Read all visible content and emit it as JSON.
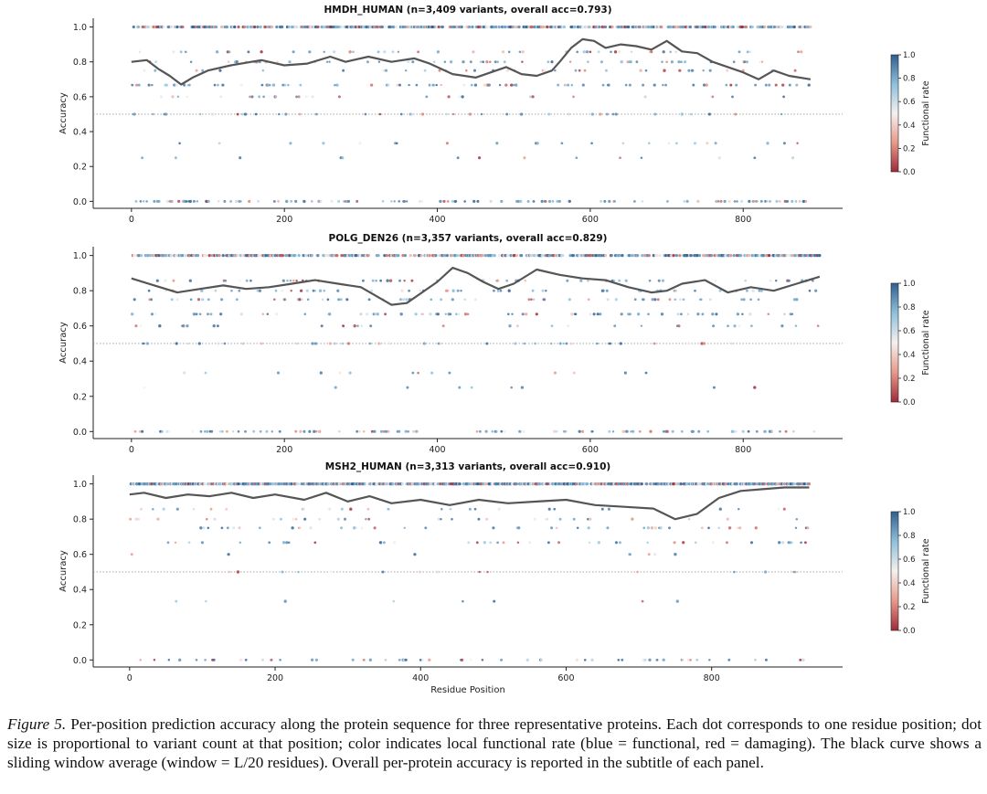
{
  "caption": {
    "label": "Figure 5.",
    "text": "Per-position prediction accuracy along the protein sequence for three representative proteins. Each dot corresponds to one residue position; dot size is proportional to variant count at that position; color indicates local functional rate (blue = functional, red = damaging). The black curve shows a sliding window average (window = L/20 residues). Overall per-protein accuracy is reported in the subtitle of each panel."
  },
  "colors": {
    "functional": "#2f5f8f",
    "neutral": "#f4f1ee",
    "damaging": "#9e2a3a",
    "curve": "#555555",
    "reference": "#999999"
  },
  "chart_data": [
    {
      "type": "scatter",
      "title": "HMDH_HUMAN  (n=3,409 variants, overall acc=0.793)",
      "xlabel": "",
      "ylabel": "Accuracy",
      "xlim": [
        -50,
        930
      ],
      "ylim": [
        -0.04,
        1.05
      ],
      "xticks": [
        0,
        200,
        400,
        600,
        800
      ],
      "yticks": [
        0.0,
        0.2,
        0.4,
        0.6,
        0.8,
        1.0
      ],
      "reference_line": 0.5,
      "n_residues": 888,
      "dot_color_by": "local functional rate",
      "colorbar": {
        "label": "Functional rate",
        "ticks": [
          0.0,
          0.2,
          0.4,
          0.6,
          0.8,
          1.0
        ]
      },
      "window_average": {
        "x": [
          0,
          20,
          35,
          50,
          65,
          80,
          100,
          130,
          170,
          200,
          230,
          260,
          280,
          310,
          340,
          370,
          390,
          420,
          450,
          470,
          490,
          510,
          530,
          550,
          560,
          575,
          590,
          605,
          620,
          640,
          660,
          680,
          700,
          720,
          740,
          760,
          780,
          800,
          820,
          840,
          860,
          888
        ],
        "y": [
          0.8,
          0.81,
          0.76,
          0.72,
          0.67,
          0.71,
          0.75,
          0.78,
          0.81,
          0.78,
          0.79,
          0.83,
          0.8,
          0.83,
          0.8,
          0.82,
          0.79,
          0.73,
          0.71,
          0.74,
          0.77,
          0.73,
          0.72,
          0.75,
          0.8,
          0.88,
          0.93,
          0.92,
          0.88,
          0.9,
          0.89,
          0.87,
          0.92,
          0.86,
          0.85,
          0.8,
          0.77,
          0.74,
          0.7,
          0.75,
          0.72,
          0.7
        ]
      },
      "accuracy_levels": [
        1.0,
        0.857,
        0.8,
        0.75,
        0.667,
        0.6,
        0.5,
        0.333,
        0.25,
        0.0
      ],
      "level_weights": [
        60,
        5,
        6,
        6,
        9,
        3,
        4,
        3,
        2,
        2
      ]
    },
    {
      "type": "scatter",
      "title": "POLG_DEN26  (n=3,357 variants, overall acc=0.829)",
      "xlabel": "",
      "ylabel": "Accuracy",
      "xlim": [
        -50,
        930
      ],
      "ylim": [
        -0.04,
        1.05
      ],
      "xticks": [
        0,
        200,
        400,
        600,
        800
      ],
      "yticks": [
        0.0,
        0.2,
        0.4,
        0.6,
        0.8,
        1.0
      ],
      "reference_line": 0.5,
      "n_residues": 900,
      "dot_color_by": "local functional rate",
      "colorbar": {
        "label": "Functional rate",
        "ticks": [
          0.0,
          0.2,
          0.4,
          0.6,
          0.8,
          1.0
        ]
      },
      "window_average": {
        "x": [
          0,
          30,
          60,
          90,
          120,
          150,
          180,
          210,
          240,
          270,
          300,
          320,
          340,
          360,
          380,
          400,
          420,
          440,
          460,
          480,
          500,
          530,
          560,
          590,
          620,
          650,
          680,
          700,
          720,
          750,
          780,
          810,
          840,
          870,
          900
        ],
        "y": [
          0.87,
          0.83,
          0.79,
          0.81,
          0.83,
          0.81,
          0.82,
          0.84,
          0.86,
          0.84,
          0.82,
          0.77,
          0.72,
          0.73,
          0.79,
          0.85,
          0.93,
          0.9,
          0.85,
          0.81,
          0.84,
          0.92,
          0.89,
          0.87,
          0.86,
          0.82,
          0.79,
          0.8,
          0.84,
          0.86,
          0.79,
          0.82,
          0.8,
          0.84,
          0.88
        ]
      },
      "accuracy_levels": [
        1.0,
        0.857,
        0.8,
        0.75,
        0.667,
        0.6,
        0.5,
        0.333,
        0.25,
        0.0
      ],
      "level_weights": [
        62,
        5,
        6,
        6,
        8,
        3,
        5,
        2,
        1,
        2
      ]
    },
    {
      "type": "scatter",
      "title": "MSH2_HUMAN  (n=3,313 variants, overall acc=0.910)",
      "xlabel": "Residue Position",
      "ylabel": "Accuracy",
      "xlim": [
        -50,
        980
      ],
      "ylim": [
        -0.04,
        1.05
      ],
      "xticks": [
        0,
        200,
        400,
        600,
        800
      ],
      "yticks": [
        0.0,
        0.2,
        0.4,
        0.6,
        0.8,
        1.0
      ],
      "reference_line": 0.5,
      "n_residues": 934,
      "dot_color_by": "local functional rate",
      "colorbar": {
        "label": "Functional rate",
        "ticks": [
          0.0,
          0.2,
          0.4,
          0.6,
          0.8,
          1.0
        ]
      },
      "window_average": {
        "x": [
          0,
          20,
          50,
          80,
          110,
          140,
          170,
          200,
          240,
          270,
          300,
          330,
          360,
          400,
          440,
          480,
          520,
          560,
          600,
          640,
          680,
          720,
          750,
          780,
          810,
          840,
          870,
          900,
          934
        ],
        "y": [
          0.94,
          0.95,
          0.92,
          0.94,
          0.93,
          0.95,
          0.92,
          0.94,
          0.91,
          0.95,
          0.9,
          0.93,
          0.89,
          0.91,
          0.88,
          0.91,
          0.89,
          0.9,
          0.91,
          0.88,
          0.87,
          0.86,
          0.8,
          0.83,
          0.92,
          0.96,
          0.97,
          0.98,
          0.98
        ]
      },
      "accuracy_levels": [
        1.0,
        0.857,
        0.8,
        0.75,
        0.667,
        0.6,
        0.5,
        0.333,
        0.25,
        0.0
      ],
      "level_weights": [
        80,
        3,
        4,
        4,
        4,
        1,
        2,
        1,
        0,
        1
      ]
    }
  ]
}
